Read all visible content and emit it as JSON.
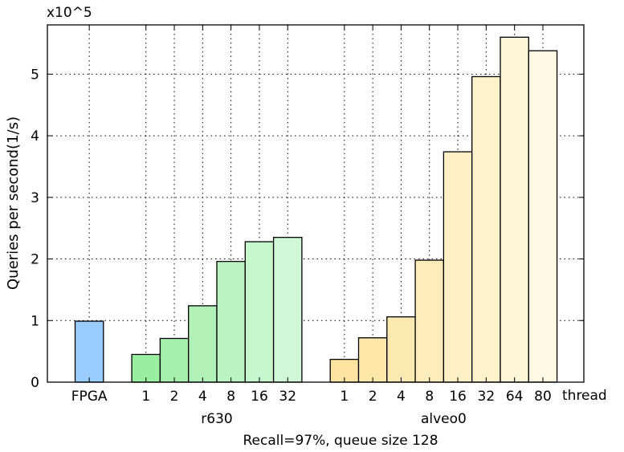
{
  "chart_data": {
    "type": "bar",
    "scale_label": "x10^5",
    "ylabel": "Queries per second(1/s)",
    "xlabel": "Recall=97%, queue size 128",
    "thread_label": "thread",
    "ylim": [
      0,
      5.8
    ],
    "yticks": [
      0,
      1,
      2,
      3,
      4,
      5
    ],
    "grid": true,
    "groups": [
      {
        "name": "",
        "categories": [
          "FPGA"
        ],
        "values": [
          0.99
        ],
        "colors": [
          "#99ccff"
        ]
      },
      {
        "name": "r630",
        "categories": [
          "1",
          "2",
          "4",
          "8",
          "16",
          "32"
        ],
        "values": [
          0.45,
          0.71,
          1.24,
          1.96,
          2.28,
          2.35
        ],
        "colors": [
          "#99ee9f",
          "#a6efac",
          "#b1f1b7",
          "#bbf3c2",
          "#c6f6cc",
          "#d1f8d6"
        ]
      },
      {
        "name": "alveo0",
        "categories": [
          "1",
          "2",
          "4",
          "8",
          "16",
          "32",
          "64",
          "80"
        ],
        "values": [
          0.37,
          0.72,
          1.06,
          1.98,
          3.74,
          4.96,
          5.6,
          5.38
        ],
        "colors": [
          "#fde4a0",
          "#fde7a9",
          "#fdeab2",
          "#feedbb",
          "#feefc4",
          "#fef2cd",
          "#fff5d7",
          "#fff8e2"
        ]
      }
    ]
  }
}
